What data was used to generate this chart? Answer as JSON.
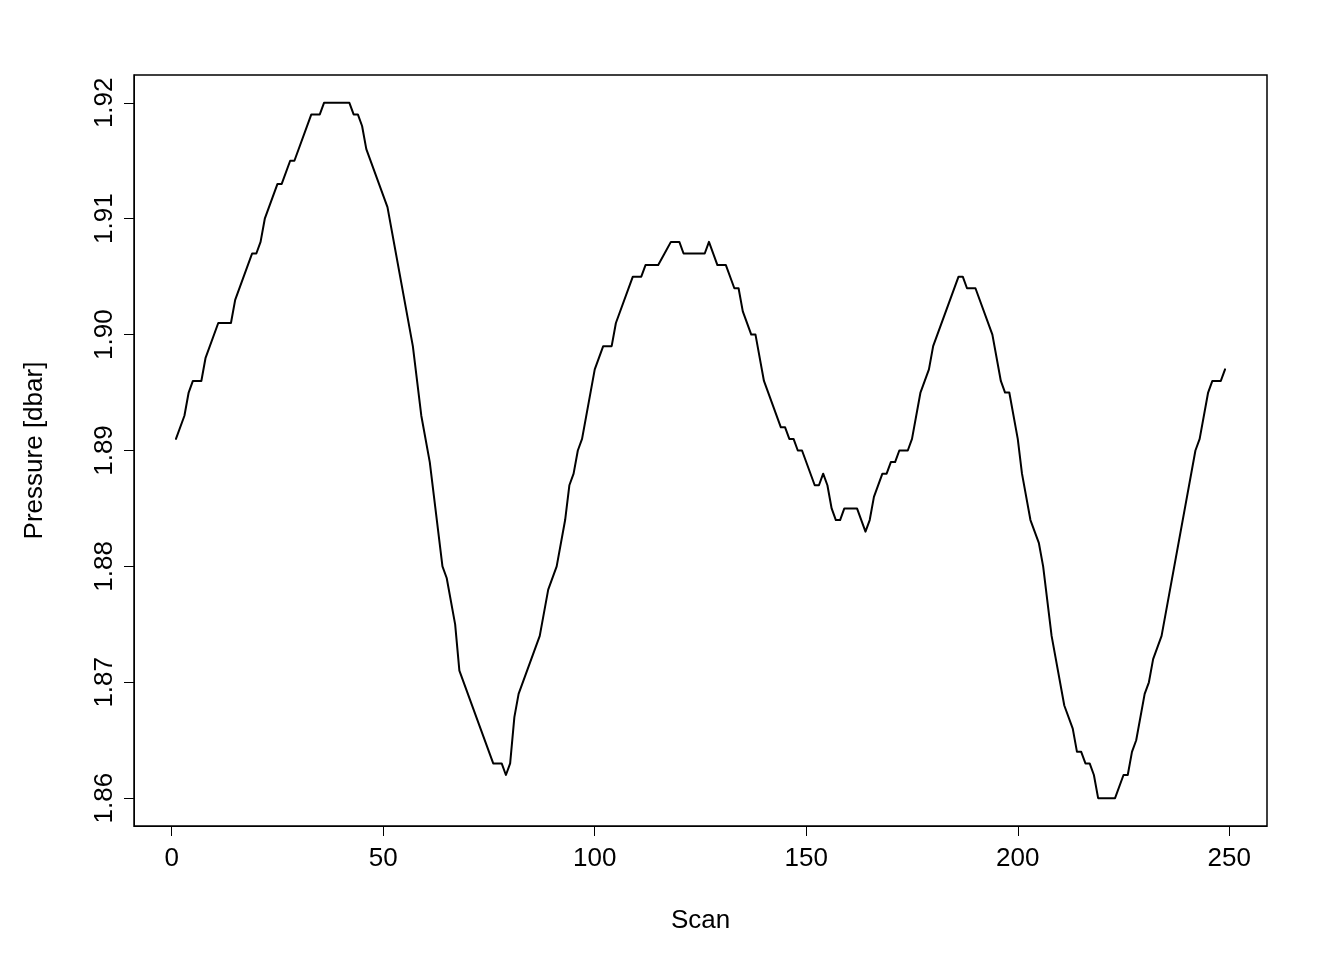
{
  "chart_data": {
    "type": "line",
    "xlabel": "Scan",
    "ylabel": "Pressure [dbar]",
    "xlim": [
      -8.92,
      258.92
    ],
    "ylim": [
      1.8576,
      1.9224
    ],
    "xticks": [
      0,
      50,
      100,
      150,
      200,
      250
    ],
    "yticks": [
      1.86,
      1.87,
      1.88,
      1.89,
      {
        "value": 1.9,
        "label": "1.90"
      },
      1.91,
      1.92
    ],
    "grid": false,
    "marker": "none",
    "line_style": "solid",
    "series": [
      {
        "color": "#000000",
        "x": [
          1,
          3,
          4,
          5,
          7,
          8,
          11,
          14,
          15,
          19,
          20,
          21,
          22,
          25,
          26,
          28,
          29,
          33,
          35,
          36,
          42,
          43,
          44,
          45,
          46,
          51,
          57,
          59,
          61,
          64,
          65,
          67,
          68,
          73,
          76,
          78,
          79,
          80,
          81,
          82,
          87,
          89,
          91,
          93,
          94,
          95,
          96,
          97,
          100,
          102,
          104,
          105,
          109,
          111,
          112,
          115,
          118,
          120,
          121,
          126,
          127,
          129,
          131,
          133,
          134,
          135,
          137,
          138,
          140,
          144,
          145,
          146,
          147,
          148,
          149,
          152,
          153,
          154,
          155,
          156,
          157,
          158,
          159,
          162,
          164,
          165,
          166,
          168,
          169,
          170,
          171,
          172,
          174,
          175,
          177,
          179,
          180,
          186,
          187,
          188,
          190,
          194,
          196,
          197,
          198,
          200,
          201,
          203,
          205,
          206,
          208,
          211,
          213,
          214,
          215,
          216,
          217,
          218,
          219,
          223,
          225,
          226,
          227,
          228,
          230,
          231,
          232,
          234,
          242,
          243,
          245,
          246,
          248,
          249
        ],
        "values": [
          1.891,
          1.893,
          1.895,
          1.896,
          1.896,
          1.898,
          1.901,
          1.901,
          1.903,
          1.907,
          1.907,
          1.908,
          1.91,
          1.913,
          1.913,
          1.915,
          1.915,
          1.919,
          1.919,
          1.92,
          1.92,
          1.919,
          1.919,
          1.918,
          1.916,
          1.911,
          1.899,
          1.893,
          1.889,
          1.88,
          1.879,
          1.875,
          1.871,
          1.866,
          1.863,
          1.863,
          1.862,
          1.863,
          1.867,
          1.869,
          1.874,
          1.878,
          1.88,
          1.884,
          1.887,
          1.888,
          1.89,
          1.891,
          1.897,
          1.899,
          1.899,
          1.901,
          1.905,
          1.905,
          1.906,
          1.906,
          1.908,
          1.908,
          1.907,
          1.907,
          1.908,
          1.906,
          1.906,
          1.904,
          1.904,
          1.902,
          1.9,
          1.9,
          1.896,
          1.892,
          1.892,
          1.891,
          1.891,
          1.89,
          1.89,
          1.887,
          1.887,
          1.888,
          1.887,
          1.885,
          1.884,
          1.884,
          1.885,
          1.885,
          1.883,
          1.884,
          1.886,
          1.888,
          1.888,
          1.889,
          1.889,
          1.89,
          1.89,
          1.891,
          1.895,
          1.897,
          1.899,
          1.905,
          1.905,
          1.904,
          1.904,
          1.9,
          1.896,
          1.895,
          1.895,
          1.891,
          1.888,
          1.884,
          1.882,
          1.88,
          1.874,
          1.868,
          1.866,
          1.864,
          1.864,
          1.863,
          1.863,
          1.862,
          1.86,
          1.86,
          1.862,
          1.862,
          1.864,
          1.865,
          1.869,
          1.87,
          1.872,
          1.874,
          1.89,
          1.891,
          1.895,
          1.896,
          1.896,
          1.897
        ]
      }
    ]
  }
}
